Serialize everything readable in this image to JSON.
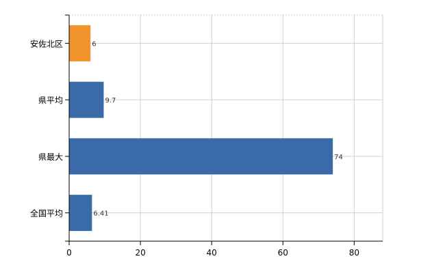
{
  "chart_data": {
    "type": "bar",
    "orientation": "horizontal",
    "categories": [
      "安佐北区",
      "県平均",
      "県最大",
      "全国平均"
    ],
    "values": [
      6,
      9.7,
      74,
      6.41
    ],
    "data_labels": [
      "6",
      "9.7",
      "74",
      "6.41"
    ],
    "bar_colors": [
      "#f0932d",
      "#3a6aa8",
      "#3a6aa8",
      "#3a6aa8"
    ],
    "xlim": [
      0,
      88
    ],
    "x_ticks": [
      0,
      20,
      40,
      60,
      80
    ],
    "x_tick_labels": [
      "0",
      "20",
      "40",
      "60",
      "80"
    ],
    "grid": true,
    "title": "",
    "xlabel": "",
    "ylabel": ""
  },
  "colors": {
    "highlight": "#f0932d",
    "base": "#3a6aa8",
    "grid": "#d0d0d0",
    "axis": "#000000"
  }
}
